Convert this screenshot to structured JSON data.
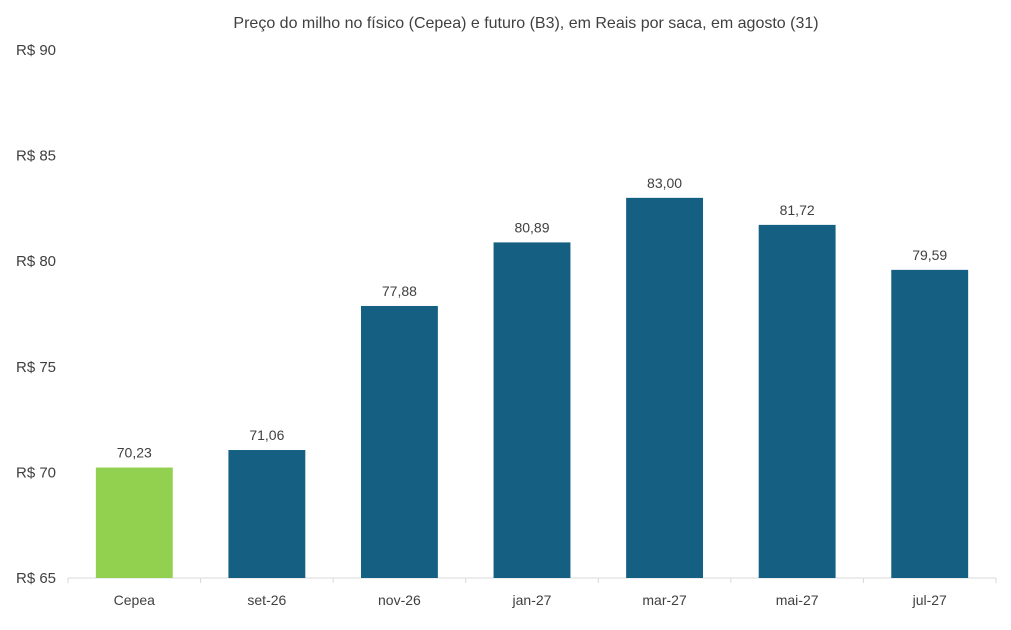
{
  "chart_data": {
    "type": "bar",
    "title": "Preço do milho no físico (Cepea) e futuro (B3), em Reais por saca, em agosto (31)",
    "categories": [
      "Cepea",
      "set-26",
      "nov-26",
      "jan-27",
      "mar-27",
      "mai-27",
      "jul-27"
    ],
    "values": [
      70.23,
      71.06,
      77.88,
      80.89,
      83.0,
      81.72,
      79.59
    ],
    "value_labels": [
      "70,23",
      "71,06",
      "77,88",
      "80,89",
      "83,00",
      "81,72",
      "79,59"
    ],
    "ylim": [
      65,
      90
    ],
    "yticks": [
      65,
      70,
      75,
      80,
      85,
      90
    ],
    "ytick_labels": [
      "R$ 65",
      "R$ 70",
      "R$ 75",
      "R$ 80",
      "R$ 85",
      "R$ 90"
    ],
    "xlabel": "",
    "ylabel": "",
    "grid": false,
    "legend": "none",
    "colors": {
      "highlight": "#92d050",
      "bar": "#156082",
      "axis": "#d9d9d9",
      "text": "#404040"
    }
  }
}
